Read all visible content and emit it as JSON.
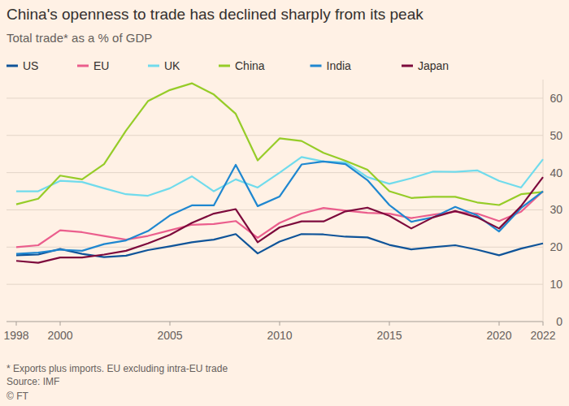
{
  "chart_data": {
    "type": "line",
    "title": "China's openness to trade has declined sharply from its peak",
    "subtitle": "Total trade* as a % of GDP",
    "note": "* Exports plus imports. EU excluding intra-EU trade",
    "source": "Source: IMF",
    "credit": "© FT",
    "x": [
      1998,
      1999,
      2000,
      2001,
      2002,
      2003,
      2004,
      2005,
      2006,
      2007,
      2008,
      2009,
      2010,
      2011,
      2012,
      2013,
      2014,
      2015,
      2016,
      2017,
      2018,
      2019,
      2020,
      2021,
      2022
    ],
    "xlim": [
      1998,
      2022
    ],
    "xticks": [
      1998,
      2000,
      2005,
      2010,
      2015,
      2020,
      2022
    ],
    "ylim": [
      0,
      65
    ],
    "yticks": [
      0,
      10,
      20,
      30,
      40,
      50,
      60
    ],
    "grid": true,
    "legend": "top",
    "line_style": "solid",
    "series": [
      {
        "name": "US",
        "color": "#0f5499",
        "values": [
          17.8,
          18,
          19.5,
          18.2,
          17.3,
          17.7,
          19.2,
          20.2,
          21.3,
          22,
          23.5,
          18.3,
          21.5,
          23.5,
          23.4,
          22.8,
          22.6,
          20.6,
          19.4,
          20,
          20.5,
          19.3,
          17.8,
          19.6,
          21
        ]
      },
      {
        "name": "EU",
        "color": "#eb5e8d",
        "values": [
          20,
          20.5,
          24.5,
          24,
          23,
          22,
          23,
          24.5,
          26,
          26.2,
          27,
          22.5,
          26.5,
          29,
          30.5,
          29.8,
          29.2,
          29,
          27.8,
          28.7,
          29.5,
          29,
          27,
          29.5,
          35
        ]
      },
      {
        "name": "UK",
        "color": "#70dbec",
        "values": [
          35,
          35,
          37.8,
          37.5,
          35.8,
          34.2,
          33.8,
          35.8,
          39,
          35,
          38.2,
          36,
          40,
          44.2,
          43,
          42.8,
          38.8,
          37,
          38.5,
          40.3,
          40.2,
          40.6,
          37.8,
          36,
          43.6
        ]
      },
      {
        "name": "China",
        "color": "#96cc28",
        "values": [
          31.5,
          33,
          39.2,
          38.2,
          42.3,
          51.3,
          59.2,
          62.2,
          64,
          61,
          55.8,
          43.3,
          49.2,
          48.5,
          45.3,
          43.2,
          40.8,
          35,
          33.2,
          33.5,
          33.5,
          32,
          31.3,
          34.2,
          34.8
        ]
      },
      {
        "name": "India",
        "color": "#1f87d0",
        "values": [
          18.2,
          18.5,
          19.3,
          19,
          20.8,
          21.8,
          24.3,
          28.5,
          31.2,
          31.2,
          42.1,
          31,
          33.6,
          42.2,
          43,
          42.3,
          38,
          31.3,
          26.8,
          28,
          30.8,
          28.5,
          24.2,
          30.5,
          35
        ]
      },
      {
        "name": "Japan",
        "color": "#7d0a3c",
        "values": [
          16.3,
          15.8,
          17.2,
          17.2,
          18,
          19,
          21,
          23.3,
          26.5,
          29,
          30.2,
          21.3,
          25.3,
          26.9,
          26.9,
          29.6,
          30.6,
          28.4,
          25,
          28,
          29.7,
          28,
          25,
          31,
          38.8
        ]
      }
    ]
  }
}
